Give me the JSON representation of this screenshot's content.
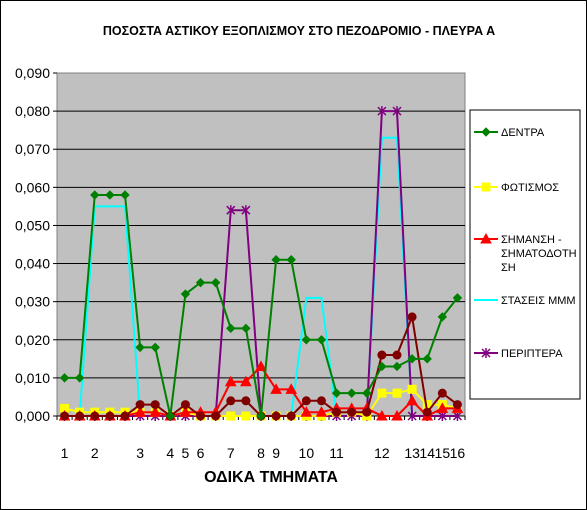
{
  "chart_data": {
    "type": "line",
    "title": "ΠΟΣΟΣΤΑ ΑΣΤΙΚΟΥ ΕΞΟΠΛΙΣΜΟΥ ΣΤΟ ΠΕΖΟΔΡΟΜΙΟ - ΠΛΕΥΡΑ Α",
    "xlabel": "ΟΔΙΚΑ ΤΜΗΜΑΤΑ",
    "ylabel": "",
    "ylim": [
      0,
      0.09
    ],
    "yticks": [
      "0,000",
      "0,010",
      "0,020",
      "0,030",
      "0,040",
      "0,050",
      "0,060",
      "0,070",
      "0,080",
      "0,090"
    ],
    "x_points": 27,
    "x_tick_labels": [
      {
        "label": "1",
        "index": 0
      },
      {
        "label": "2",
        "index": 2
      },
      {
        "label": "3",
        "index": 5
      },
      {
        "label": "4",
        "index": 7
      },
      {
        "label": "5",
        "index": 8
      },
      {
        "label": "6",
        "index": 9
      },
      {
        "label": "7",
        "index": 11
      },
      {
        "label": "8",
        "index": 13
      },
      {
        "label": "9",
        "index": 14
      },
      {
        "label": "10",
        "index": 16
      },
      {
        "label": "11",
        "index": 18
      },
      {
        "label": "12",
        "index": 21
      },
      {
        "label": "13",
        "index": 23
      },
      {
        "label": "14",
        "index": 24
      },
      {
        "label": "15",
        "index": 25
      },
      {
        "label": "16",
        "index": 26
      }
    ],
    "grid": true,
    "legend_position": "right",
    "background_color": "#c0c0c0",
    "series": [
      {
        "name": "ΔΕΝΤΡΑ",
        "color": "#008000",
        "marker": "diamond",
        "values": [
          0.01,
          0.01,
          0.058,
          0.058,
          0.058,
          0.018,
          0.018,
          0.0,
          0.032,
          0.035,
          0.035,
          0.023,
          0.023,
          0.0,
          0.041,
          0.041,
          0.02,
          0.02,
          0.006,
          0.006,
          0.006,
          0.013,
          0.013,
          0.015,
          0.015,
          0.026,
          0.031
        ]
      },
      {
        "name": "ΦΩΤΙΣΜΟΣ",
        "color": "#ffff00",
        "marker": "square",
        "values": [
          0.002,
          0.001,
          0.001,
          0.001,
          0.001,
          0.001,
          0.001,
          0.0,
          0.001,
          0.0,
          0.0,
          0.0,
          0.0,
          0.0,
          0.0,
          0.0,
          0.0,
          0.0,
          0.001,
          0.001,
          0.0,
          0.006,
          0.006,
          0.007,
          0.003,
          0.003,
          0.002
        ]
      },
      {
        "name": "ΣΗΜΑΝΣΗ - ΣΗΜΑΤΟΔΟΤΗΣΗ",
        "legend_lines": [
          "ΣΗΜΑΝΣΗ -",
          "ΣΗΜΑΤΟΔΟΤΗ",
          "ΣΗ"
        ],
        "color": "#ff0000",
        "marker": "triangle",
        "values": [
          0.0,
          0.0,
          0.0,
          0.0,
          0.0,
          0.001,
          0.001,
          0.0,
          0.001,
          0.001,
          0.001,
          0.009,
          0.009,
          0.013,
          0.007,
          0.007,
          0.001,
          0.001,
          0.002,
          0.002,
          0.002,
          0.0,
          0.0,
          0.004,
          0.0,
          0.002,
          0.002
        ]
      },
      {
        "name": "ΣΤΑΣΕΙΣ ΜΜΜ",
        "color": "#00ffff",
        "marker": "none",
        "values": [
          0.0,
          0.0,
          0.055,
          0.055,
          0.055,
          0.0,
          0.0,
          0.0,
          0.0,
          0.0,
          0.0,
          0.0,
          0.0,
          0.0,
          0.0,
          0.0,
          0.031,
          0.031,
          0.0,
          0.0,
          0.0,
          0.073,
          0.073,
          0.0,
          0.0,
          0.0,
          0.0
        ]
      },
      {
        "name": "ΠΕΡΙΠΤΕΡΑ",
        "color": "#800080",
        "marker": "star",
        "values": [
          0.0,
          0.0,
          0.0,
          0.0,
          0.0,
          0.0,
          0.0,
          0.0,
          0.0,
          0.0,
          0.0,
          0.054,
          0.054,
          0.0,
          0.0,
          0.0,
          0.0,
          0.0,
          0.0,
          0.0,
          0.0,
          0.08,
          0.08,
          0.0,
          0.0,
          0.0,
          0.0
        ]
      },
      {
        "name": "",
        "color": "#800000",
        "marker": "circle",
        "values": [
          0.0,
          0.0,
          0.0,
          0.0,
          0.0,
          0.003,
          0.003,
          0.0,
          0.003,
          0.0,
          0.0,
          0.004,
          0.004,
          0.0,
          0.0,
          0.0,
          0.004,
          0.004,
          0.001,
          0.001,
          0.001,
          0.016,
          0.016,
          0.026,
          0.001,
          0.006,
          0.003
        ]
      }
    ]
  }
}
